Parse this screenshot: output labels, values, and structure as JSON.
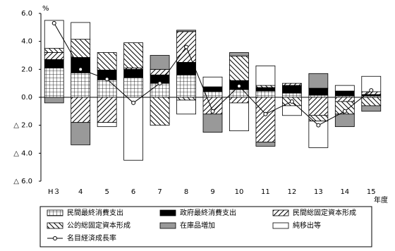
{
  "chart_data": {
    "type": "stacked-bar-line",
    "y_unit": "%",
    "x_unit": "年度",
    "categories": [
      "H３",
      "4",
      "5",
      "6",
      "7",
      "8",
      "9",
      "10",
      "11",
      "12",
      "13",
      "14",
      "15"
    ],
    "ylim": [
      -6,
      6
    ],
    "yticks": [
      {
        "value": 6,
        "label": "6.0"
      },
      {
        "value": 4,
        "label": "4.0"
      },
      {
        "value": 2,
        "label": "2.0"
      },
      {
        "value": 0,
        "label": "0.0"
      },
      {
        "value": -2,
        "label": "△ 2.0"
      },
      {
        "value": -4,
        "label": "△ 4.0"
      },
      {
        "value": -6,
        "label": "△ 6.0"
      }
    ],
    "series": [
      {
        "name": "民間最終消費支出",
        "pattern": "grid",
        "color": "#ffffff",
        "values": [
          2.1,
          1.75,
          1.25,
          1.4,
          1.0,
          1.6,
          0.4,
          0.55,
          0.45,
          0.3,
          0.15,
          0.1,
          0.1
        ]
      },
      {
        "name": "政府最終消費支出",
        "pattern": "solid",
        "color": "#000000",
        "values": [
          0.6,
          1.1,
          0.7,
          0.6,
          0.6,
          0.9,
          0.35,
          0.65,
          0.25,
          0.55,
          0.5,
          0.35,
          0.1
        ]
      },
      {
        "name": "民間総固定資本形成",
        "pattern": "hatch-right",
        "color": "#ffffff",
        "values": [
          0.5,
          -1.8,
          -1.8,
          0.1,
          0.4,
          2.2,
          -1.2,
          -0.4,
          -3.2,
          0.15,
          -1.3,
          -0.3,
          0.2
        ]
      },
      {
        "name": "公的総固定資本形成",
        "pattern": "hatch-left",
        "color": "#ffffff",
        "values": [
          0.3,
          1.3,
          1.25,
          1.8,
          -2.0,
          -0.2,
          0.0,
          1.75,
          0.15,
          -0.6,
          -0.4,
          -0.9,
          -0.6
        ]
      },
      {
        "name": "在庫品増加",
        "pattern": "solid",
        "color": "#999999",
        "values": [
          -0.4,
          -1.6,
          0.0,
          0.0,
          1.0,
          0.1,
          -1.3,
          0.25,
          -0.3,
          0.0,
          1.05,
          -0.9,
          -0.4
        ]
      },
      {
        "name": "純移出等",
        "pattern": "solid",
        "color": "#ffffff",
        "values": [
          2.0,
          1.2,
          -0.3,
          -4.5,
          0.0,
          -1.0,
          0.7,
          -2.0,
          1.4,
          -0.7,
          -1.9,
          0.4,
          1.1
        ]
      }
    ],
    "line": {
      "name": "名目経済成長率",
      "color": "#000000",
      "values": [
        5.3,
        2.0,
        1.3,
        -0.4,
        1.0,
        3.6,
        -1.0,
        0.8,
        -1.2,
        -0.3,
        -2.0,
        -1.0,
        0.5
      ]
    },
    "legend": "bottom"
  }
}
